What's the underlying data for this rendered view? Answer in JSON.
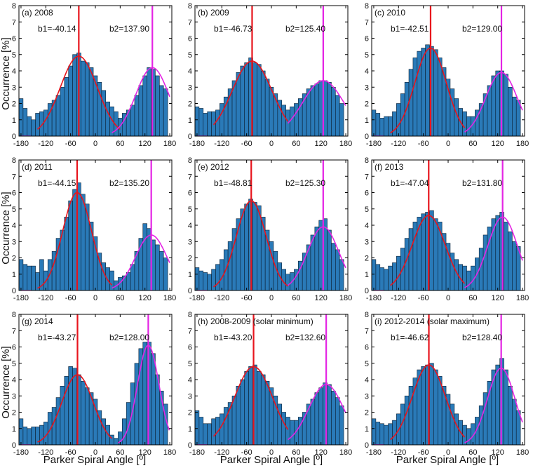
{
  "figure": {
    "ylabel": "Occurrence [%]",
    "xlabel": "Parker Spiral Angle [º]",
    "bar_color": "#2a7ab8",
    "b1_line_color": "#e8141c",
    "b2_line_color": "#e424e4",
    "fit1_color": "#e8141c",
    "fit2_color": "#e424e4"
  },
  "chart_data": [
    {
      "type": "bar",
      "label": "(a) 2008",
      "b1_text": "b1=-40.14",
      "b2_text": "b2=137.90",
      "b1": -40.14,
      "b2": 137.9,
      "xlim": [
        -185,
        185
      ],
      "ylim": [
        0,
        8
      ],
      "xticks": [
        -180,
        -120,
        -60,
        0,
        60,
        120,
        180
      ],
      "yticks": [
        0,
        1,
        2,
        3,
        4,
        5,
        6,
        7,
        8
      ],
      "bin_width": 10,
      "x": [
        -180,
        -170,
        -160,
        -150,
        -140,
        -130,
        -120,
        -110,
        -100,
        -90,
        -80,
        -70,
        -60,
        -50,
        -40,
        -30,
        -20,
        -10,
        0,
        10,
        20,
        30,
        40,
        50,
        60,
        70,
        80,
        90,
        100,
        110,
        120,
        130,
        140,
        150,
        160,
        170
      ],
      "values": [
        2.3,
        1.7,
        1.2,
        1.0,
        1.4,
        1.5,
        1.6,
        2.0,
        2.2,
        2.5,
        3.0,
        3.6,
        4.3,
        5.0,
        5.1,
        4.6,
        4.5,
        4.2,
        3.7,
        3.3,
        2.8,
        2.1,
        1.8,
        1.5,
        1.1,
        1.4,
        1.6,
        1.9,
        2.5,
        3.1,
        3.7,
        4.2,
        4.1,
        3.7,
        3.1,
        2.9
      ],
      "fit1": {
        "amp": 4.9,
        "center": -40.14,
        "sigma": 45,
        "range": [
          -140,
          60
        ]
      },
      "fit2": {
        "amp": 4.2,
        "center": 137.9,
        "sigma": 40,
        "range": [
          40,
          180
        ]
      },
      "tail": {
        "amp": 4.2,
        "center": 137.9,
        "sigma": 40,
        "range": [
          -180,
          -155
        ]
      }
    },
    {
      "type": "bar",
      "label": "(b) 2009",
      "b1_text": "b1=-46.73",
      "b2_text": "b2=125.40",
      "b1": -46.73,
      "b2": 125.4,
      "xlim": [
        -185,
        185
      ],
      "ylim": [
        0,
        8
      ],
      "xticks": [
        -180,
        -120,
        -60,
        0,
        60,
        120,
        180
      ],
      "yticks": [
        0,
        1,
        2,
        3,
        4,
        5,
        6,
        7,
        8
      ],
      "bin_width": 10,
      "x": [
        -180,
        -170,
        -160,
        -150,
        -140,
        -130,
        -120,
        -110,
        -100,
        -90,
        -80,
        -70,
        -60,
        -50,
        -40,
        -30,
        -20,
        -10,
        0,
        10,
        20,
        30,
        40,
        50,
        60,
        70,
        80,
        90,
        100,
        110,
        120,
        130,
        140,
        150,
        160,
        170
      ],
      "values": [
        1.8,
        1.7,
        1.4,
        1.5,
        1.5,
        1.6,
        2.0,
        2.4,
        2.9,
        3.4,
        3.9,
        4.3,
        4.5,
        4.8,
        4.5,
        4.4,
        4.0,
        3.5,
        3.0,
        2.6,
        2.2,
        1.9,
        1.6,
        1.8,
        2.0,
        2.3,
        2.6,
        2.9,
        3.1,
        3.2,
        3.4,
        3.4,
        3.3,
        3.0,
        2.5,
        2.0
      ],
      "fit1": {
        "amp": 4.6,
        "center": -46.73,
        "sigma": 48,
        "range": [
          -140,
          40
        ]
      },
      "fit2": {
        "amp": 3.4,
        "center": 125.4,
        "sigma": 50,
        "range": [
          40,
          180
        ]
      },
      "tail": {
        "amp": 3.4,
        "center": 125.4,
        "sigma": 50,
        "range": [
          -180,
          -155
        ]
      }
    },
    {
      "type": "bar",
      "label": "(c) 2010",
      "b1_text": "b1=-42.51",
      "b2_text": "b2=129.00",
      "b1": -42.51,
      "b2": 129.0,
      "xlim": [
        -185,
        185
      ],
      "ylim": [
        0,
        8
      ],
      "xticks": [
        -180,
        -120,
        -60,
        0,
        60,
        120,
        180
      ],
      "yticks": [
        0,
        1,
        2,
        3,
        4,
        5,
        6,
        7,
        8
      ],
      "bin_width": 10,
      "x": [
        -180,
        -170,
        -160,
        -150,
        -140,
        -130,
        -120,
        -110,
        -100,
        -90,
        -80,
        -70,
        -60,
        -50,
        -40,
        -30,
        -20,
        -10,
        0,
        10,
        20,
        30,
        40,
        50,
        60,
        70,
        80,
        90,
        100,
        110,
        120,
        130,
        140,
        150,
        160,
        170
      ],
      "values": [
        1.6,
        1.4,
        1.1,
        1.2,
        1.2,
        1.5,
        2.0,
        2.6,
        3.3,
        4.1,
        4.8,
        5.2,
        5.4,
        5.6,
        5.5,
        5.3,
        4.8,
        4.2,
        3.5,
        2.9,
        2.3,
        1.7,
        1.5,
        1.2,
        1.2,
        1.6,
        2.0,
        2.6,
        3.1,
        3.7,
        4.0,
        4.0,
        3.8,
        3.0,
        2.4,
        2.2
      ],
      "fit1": {
        "amp": 5.4,
        "center": -42.51,
        "sigma": 38,
        "range": [
          -140,
          40
        ]
      },
      "fit2": {
        "amp": 3.9,
        "center": 129.0,
        "sigma": 38,
        "range": [
          40,
          180
        ]
      },
      "tail": {
        "amp": 3.9,
        "center": 129.0,
        "sigma": 38,
        "range": [
          -180,
          -155
        ]
      }
    },
    {
      "type": "bar",
      "label": "(d) 2011",
      "b1_text": "b1=-44.15",
      "b2_text": "b2=135.20",
      "b1": -44.15,
      "b2": 135.2,
      "xlim": [
        -185,
        185
      ],
      "ylim": [
        0,
        8
      ],
      "xticks": [
        -180,
        -120,
        -60,
        0,
        60,
        120,
        180
      ],
      "yticks": [
        0,
        1,
        2,
        3,
        4,
        5,
        6,
        7,
        8
      ],
      "bin_width": 10,
      "x": [
        -180,
        -170,
        -160,
        -150,
        -140,
        -130,
        -120,
        -110,
        -100,
        -90,
        -80,
        -70,
        -60,
        -50,
        -40,
        -30,
        -20,
        -10,
        0,
        10,
        20,
        30,
        40,
        50,
        60,
        70,
        80,
        90,
        100,
        110,
        120,
        130,
        140,
        150,
        160,
        170
      ],
      "values": [
        1.9,
        1.6,
        1.5,
        1.5,
        1.1,
        1.9,
        1.2,
        1.9,
        2.4,
        3.2,
        3.7,
        4.5,
        5.5,
        6.2,
        6.6,
        5.9,
        5.3,
        4.2,
        3.3,
        2.3,
        1.7,
        1.4,
        1.2,
        0.6,
        0.8,
        0.9,
        1.1,
        1.6,
        2.4,
        3.2,
        4.1,
        3.8,
        3.1,
        2.8,
        2.4,
        2.0
      ],
      "fit1": {
        "amp": 6.0,
        "center": -44.15,
        "sigma": 35,
        "range": [
          -140,
          40
        ]
      },
      "fit2": {
        "amp": 3.4,
        "center": 135.2,
        "sigma": 38,
        "range": [
          40,
          180
        ]
      },
      "tail": {
        "amp": 3.4,
        "center": 135.2,
        "sigma": 38,
        "range": [
          -180,
          -155
        ]
      }
    },
    {
      "type": "bar",
      "label": "(e) 2012",
      "b1_text": "b1=-48.81",
      "b2_text": "b2=125.30",
      "b1": -48.81,
      "b2": 125.3,
      "xlim": [
        -185,
        185
      ],
      "ylim": [
        0,
        8
      ],
      "xticks": [
        -180,
        -120,
        -60,
        0,
        60,
        120,
        180
      ],
      "yticks": [
        0,
        1,
        2,
        3,
        4,
        5,
        6,
        7,
        8
      ],
      "bin_width": 10,
      "x": [
        -180,
        -170,
        -160,
        -150,
        -140,
        -130,
        -120,
        -110,
        -100,
        -90,
        -80,
        -70,
        -60,
        -50,
        -40,
        -30,
        -20,
        -10,
        0,
        10,
        20,
        30,
        40,
        50,
        60,
        70,
        80,
        90,
        100,
        110,
        120,
        130,
        140,
        150,
        160,
        170
      ],
      "values": [
        1.4,
        1.2,
        1.1,
        1.0,
        1.3,
        1.6,
        1.9,
        2.5,
        3.0,
        3.8,
        4.4,
        5.0,
        5.3,
        5.6,
        5.4,
        5.2,
        4.5,
        3.7,
        3.0,
        2.4,
        1.7,
        1.3,
        1.0,
        1.1,
        1.3,
        1.8,
        2.3,
        2.8,
        3.4,
        3.9,
        4.3,
        4.4,
        3.7,
        2.9,
        2.5,
        1.9
      ],
      "fit1": {
        "amp": 5.5,
        "center": -48.81,
        "sigma": 36,
        "range": [
          -140,
          40
        ]
      },
      "fit2": {
        "amp": 3.9,
        "center": 125.3,
        "sigma": 38,
        "range": [
          40,
          180
        ]
      },
      "tail": {
        "amp": 3.9,
        "center": 125.3,
        "sigma": 38,
        "range": [
          -180,
          -155
        ]
      }
    },
    {
      "type": "bar",
      "label": "(f) 2013",
      "b1_text": "b1=-47.04",
      "b2_text": "b2=131.80",
      "b1": -47.04,
      "b2": 131.8,
      "xlim": [
        -185,
        185
      ],
      "ylim": [
        0,
        8
      ],
      "xticks": [
        -180,
        -120,
        -60,
        0,
        60,
        120,
        180
      ],
      "yticks": [
        0,
        1,
        2,
        3,
        4,
        5,
        6,
        7,
        8
      ],
      "bin_width": 10,
      "x": [
        -180,
        -170,
        -160,
        -150,
        -140,
        -130,
        -120,
        -110,
        -100,
        -90,
        -80,
        -70,
        -60,
        -50,
        -40,
        -30,
        -20,
        -10,
        0,
        10,
        20,
        30,
        40,
        50,
        60,
        70,
        80,
        90,
        100,
        110,
        120,
        130,
        140,
        150,
        160,
        170
      ],
      "values": [
        1.9,
        1.6,
        1.4,
        1.3,
        1.5,
        1.7,
        2.1,
        2.6,
        3.2,
        3.8,
        4.2,
        4.5,
        4.7,
        4.8,
        4.9,
        4.4,
        4.2,
        3.5,
        2.9,
        2.3,
        1.9,
        1.6,
        1.5,
        1.2,
        1.5,
        2.0,
        2.6,
        3.4,
        3.9,
        4.4,
        4.6,
        4.8,
        4.2,
        3.6,
        3.0,
        2.7
      ],
      "fit1": {
        "amp": 4.6,
        "center": -47.04,
        "sigma": 40,
        "range": [
          -140,
          40
        ]
      },
      "fit2": {
        "amp": 4.5,
        "center": 131.8,
        "sigma": 36,
        "range": [
          40,
          180
        ]
      },
      "tail": {
        "amp": 4.5,
        "center": 131.8,
        "sigma": 36,
        "range": [
          -180,
          -155
        ]
      }
    },
    {
      "type": "bar",
      "label": "(g) 2014",
      "b1_text": "b1=-43.27",
      "b2_text": "b2=128.00",
      "b1": -43.27,
      "b2": 128.0,
      "xlim": [
        -185,
        185
      ],
      "ylim": [
        0,
        8
      ],
      "xticks": [
        -180,
        -120,
        -60,
        0,
        60,
        120,
        180
      ],
      "yticks": [
        0,
        1,
        2,
        3,
        4,
        5,
        6,
        7,
        8
      ],
      "bin_width": 10,
      "x": [
        -180,
        -170,
        -160,
        -150,
        -140,
        -130,
        -120,
        -110,
        -100,
        -90,
        -80,
        -70,
        -60,
        -50,
        -40,
        -30,
        -20,
        -10,
        0,
        10,
        20,
        30,
        40,
        50,
        60,
        70,
        80,
        90,
        100,
        110,
        120,
        130,
        140,
        150,
        160,
        170
      ],
      "values": [
        1.6,
        1.1,
        1.0,
        1.1,
        1.1,
        1.2,
        1.4,
        2.0,
        2.3,
        2.9,
        3.6,
        4.2,
        4.8,
        4.7,
        4.3,
        3.9,
        3.5,
        3.2,
        2.8,
        2.1,
        1.6,
        1.2,
        0.6,
        0.4,
        0.8,
        1.6,
        2.6,
        3.8,
        5.0,
        5.9,
        6.3,
        6.3,
        5.6,
        4.3,
        3.3,
        2.5
      ],
      "fit1": {
        "amp": 4.3,
        "center": -43.27,
        "sigma": 38,
        "range": [
          -140,
          40
        ]
      },
      "fit2": {
        "amp": 6.1,
        "center": 128.0,
        "sigma": 26,
        "range": [
          55,
          180
        ]
      },
      "tail": {
        "amp": 6.1,
        "center": 128.0,
        "sigma": 26,
        "range": [
          -180,
          -155
        ]
      }
    },
    {
      "type": "bar",
      "label": "(h) 2008-2009  (solar minimum)",
      "b1_text": "b1=-43.20",
      "b2_text": "b2=132.60",
      "b1": -43.2,
      "b2": 132.6,
      "xlim": [
        -185,
        185
      ],
      "ylim": [
        0,
        8
      ],
      "xticks": [
        -180,
        -120,
        -60,
        0,
        60,
        120,
        180
      ],
      "yticks": [
        0,
        1,
        2,
        3,
        4,
        5,
        6,
        7,
        8
      ],
      "bin_width": 10,
      "x": [
        -180,
        -170,
        -160,
        -150,
        -140,
        -130,
        -120,
        -110,
        -100,
        -90,
        -80,
        -70,
        -60,
        -50,
        -40,
        -30,
        -20,
        -10,
        0,
        10,
        20,
        30,
        40,
        50,
        60,
        70,
        80,
        90,
        100,
        110,
        120,
        130,
        140,
        150,
        160,
        170
      ],
      "values": [
        2.1,
        1.7,
        1.3,
        1.3,
        1.6,
        1.7,
        1.9,
        2.3,
        2.6,
        3.0,
        3.6,
        4.0,
        4.5,
        4.8,
        4.9,
        4.5,
        4.3,
        3.9,
        3.5,
        3.0,
        2.5,
        2.0,
        1.7,
        1.5,
        1.5,
        1.7,
        2.0,
        2.5,
        2.8,
        3.2,
        3.5,
        3.8,
        3.7,
        3.3,
        2.9,
        2.4
      ],
      "fit1": {
        "amp": 4.8,
        "center": -43.2,
        "sigma": 46,
        "range": [
          -140,
          40
        ]
      },
      "fit2": {
        "amp": 3.7,
        "center": 132.6,
        "sigma": 42,
        "range": [
          40,
          180
        ]
      },
      "tail": {
        "amp": 3.7,
        "center": 132.6,
        "sigma": 42,
        "range": [
          -180,
          -155
        ]
      }
    },
    {
      "type": "bar",
      "label": "(i) 2012-2014  (solar maximum)",
      "b1_text": "b1=-46.62",
      "b2_text": "b2=128.40",
      "b1": -46.62,
      "b2": 128.4,
      "xlim": [
        -185,
        185
      ],
      "ylim": [
        0,
        8
      ],
      "xticks": [
        -180,
        -120,
        -60,
        0,
        60,
        120,
        180
      ],
      "yticks": [
        0,
        1,
        2,
        3,
        4,
        5,
        6,
        7,
        8
      ],
      "bin_width": 10,
      "x": [
        -180,
        -170,
        -160,
        -150,
        -140,
        -130,
        -120,
        -110,
        -100,
        -90,
        -80,
        -70,
        -60,
        -50,
        -40,
        -30,
        -20,
        -10,
        0,
        10,
        20,
        30,
        40,
        50,
        60,
        70,
        80,
        90,
        100,
        110,
        120,
        130,
        140,
        150,
        160,
        170
      ],
      "values": [
        1.6,
        1.4,
        1.3,
        1.2,
        1.3,
        1.5,
        1.9,
        2.5,
        3.0,
        3.6,
        4.1,
        4.6,
        4.8,
        4.9,
        5.0,
        4.6,
        4.2,
        3.6,
        3.1,
        2.5,
        1.9,
        1.5,
        1.2,
        1.0,
        1.3,
        1.7,
        2.4,
        3.2,
        3.9,
        4.6,
        4.9,
        5.3,
        4.6,
        3.6,
        2.8,
        2.1
      ],
      "fit1": {
        "amp": 4.9,
        "center": -46.62,
        "sigma": 40,
        "range": [
          -140,
          40
        ]
      },
      "fit2": {
        "amp": 4.7,
        "center": 128.4,
        "sigma": 33,
        "range": [
          40,
          180
        ]
      },
      "tail": {
        "amp": 4.7,
        "center": 128.4,
        "sigma": 33,
        "range": [
          -180,
          -155
        ]
      }
    }
  ]
}
